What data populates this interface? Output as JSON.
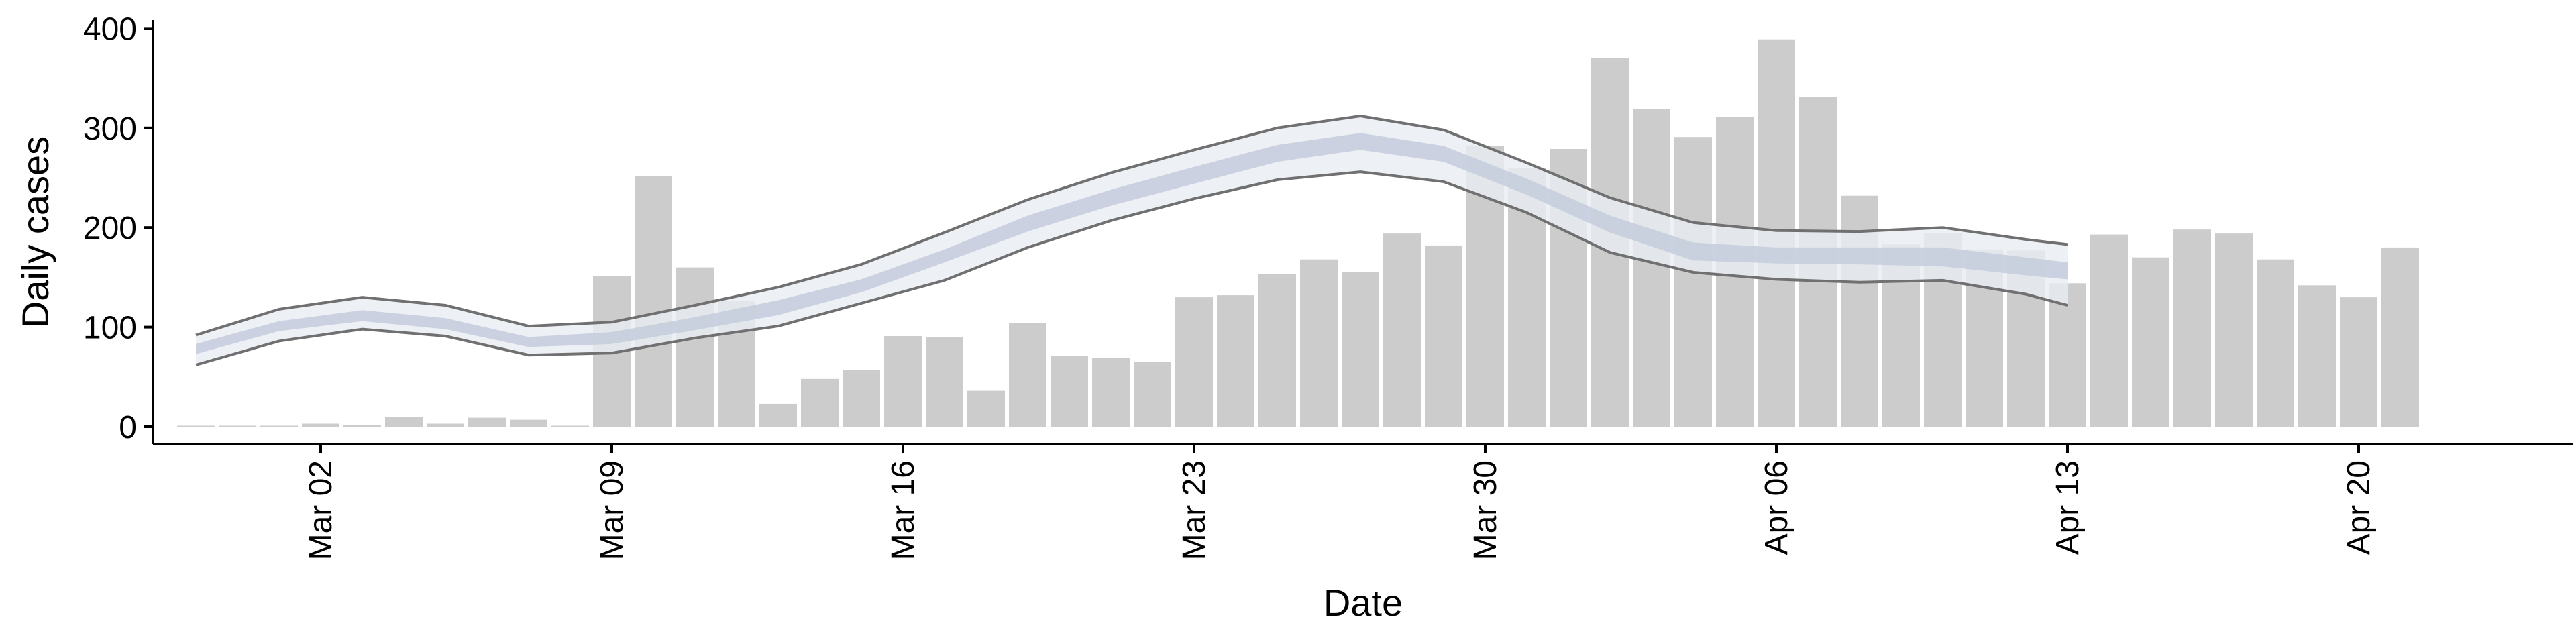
{
  "chart_data": {
    "type": "bar",
    "title": "",
    "xlabel": "Date",
    "ylabel": "Daily cases",
    "ylim": [
      -20,
      410
    ],
    "grid": false,
    "legend": "none",
    "x_ticks": [
      "Mar 02",
      "Mar 09",
      "Mar 16",
      "Mar 23",
      "Mar 30",
      "Apr 06",
      "Apr 13",
      "Apr 20"
    ],
    "y_ticks": [
      "0",
      "100",
      "200",
      "300",
      "400"
    ],
    "series": [
      {
        "type": "bar",
        "x": [
          "2020-02-28",
          "2020-02-29",
          "2020-03-01",
          "2020-03-02",
          "2020-03-03",
          "2020-03-04",
          "2020-03-05",
          "2020-03-06",
          "2020-03-07",
          "2020-03-08",
          "2020-03-09",
          "2020-03-10",
          "2020-03-11",
          "2020-03-12",
          "2020-03-13",
          "2020-03-14",
          "2020-03-15",
          "2020-03-16",
          "2020-03-17",
          "2020-03-18",
          "2020-03-19",
          "2020-03-20",
          "2020-03-21",
          "2020-03-22",
          "2020-03-23",
          "2020-03-24",
          "2020-03-25",
          "2020-03-26",
          "2020-03-27",
          "2020-03-28",
          "2020-03-29",
          "2020-03-30",
          "2020-03-31",
          "2020-04-01",
          "2020-04-02",
          "2020-04-03",
          "2020-04-04",
          "2020-04-05",
          "2020-04-06",
          "2020-04-07",
          "2020-04-08",
          "2020-04-09",
          "2020-04-10",
          "2020-04-11",
          "2020-04-12",
          "2020-04-13",
          "2020-04-14",
          "2020-04-15",
          "2020-04-16",
          "2020-04-17",
          "2020-04-18",
          "2020-04-19",
          "2020-04-20",
          "2020-04-21",
          "2020-04-22",
          "2020-04-23"
        ],
        "values": [
          1,
          1,
          1,
          3,
          2,
          10,
          3,
          9,
          7,
          1,
          151,
          252,
          160,
          126,
          23,
          48,
          57,
          91,
          90,
          36,
          104,
          71,
          69,
          65,
          130,
          132,
          153,
          168,
          155,
          194,
          182,
          282,
          260,
          279,
          370,
          319,
          291,
          311,
          389,
          331,
          232,
          183,
          194,
          178,
          177,
          144,
          193,
          170,
          198,
          194,
          168,
          142,
          130,
          180,
          0,
          0
        ]
      }
    ],
    "model": {
      "x": [
        "2020-02-28",
        "2020-03-01",
        "2020-03-03",
        "2020-03-05",
        "2020-03-07",
        "2020-03-09",
        "2020-03-11",
        "2020-03-13",
        "2020-03-15",
        "2020-03-17",
        "2020-03-19",
        "2020-03-21",
        "2020-03-23",
        "2020-03-25",
        "2020-03-27",
        "2020-03-29",
        "2020-03-31",
        "2020-04-02",
        "2020-04-04",
        "2020-04-06",
        "2020-04-08",
        "2020-04-10",
        "2020-04-12",
        "2020-04-13"
      ],
      "outer_upper": [
        92,
        118,
        130,
        122,
        101,
        105,
        122,
        140,
        163,
        195,
        228,
        255,
        278,
        300,
        312,
        298,
        265,
        230,
        205,
        197,
        196,
        200,
        188,
        183
      ],
      "outer_lower": [
        62,
        86,
        98,
        91,
        72,
        74,
        89,
        101,
        124,
        147,
        180,
        207,
        229,
        248,
        256,
        246,
        215,
        175,
        155,
        148,
        145,
        147,
        133,
        122
      ],
      "inner_upper": [
        83,
        106,
        117,
        109,
        90,
        95,
        110,
        127,
        148,
        178,
        212,
        238,
        261,
        283,
        295,
        282,
        249,
        212,
        185,
        180,
        180,
        180,
        170,
        165
      ],
      "inner_lower": [
        73,
        96,
        106,
        98,
        80,
        83,
        97,
        112,
        135,
        165,
        196,
        222,
        244,
        266,
        278,
        266,
        233,
        195,
        167,
        164,
        163,
        161,
        152,
        148
      ]
    },
    "colors": {
      "bars": "#cccccc",
      "outer_band": "#e9ecf3",
      "inner_band": "#c4cbdc",
      "outline": "#707070"
    }
  }
}
